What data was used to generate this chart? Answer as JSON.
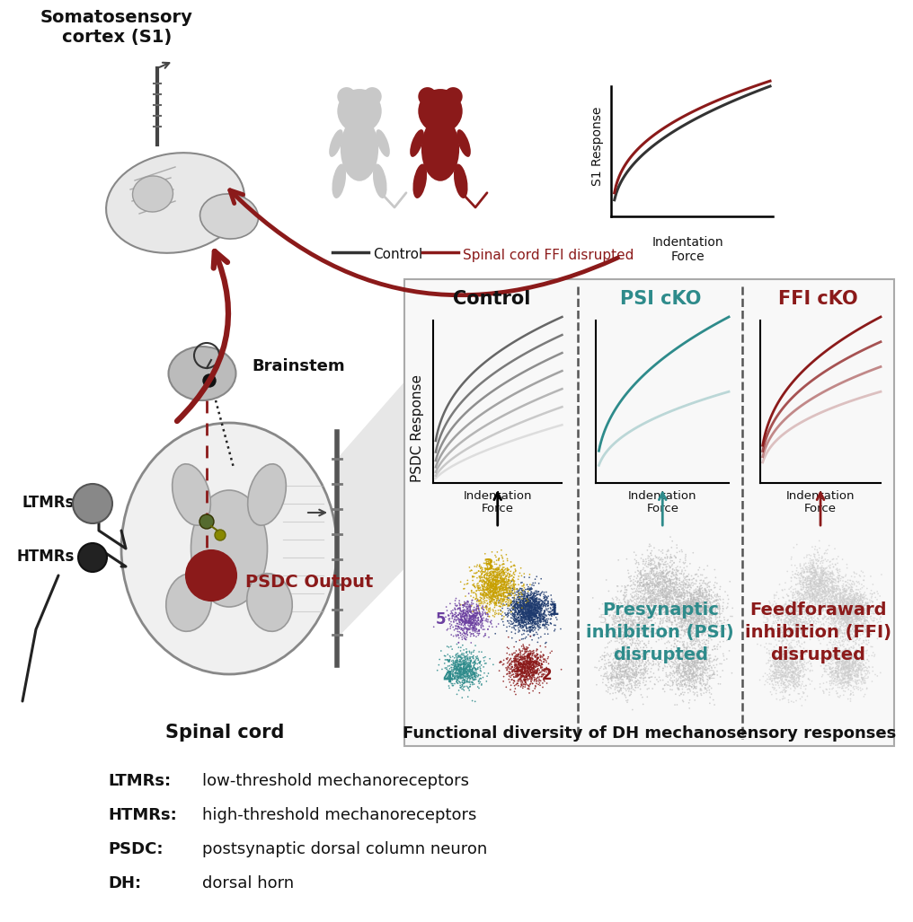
{
  "bg_color": "#ffffff",
  "dark_red": "#8B1A1A",
  "teal": "#2E8B8B",
  "cluster_colors": [
    "#1E3A6E",
    "#8B1A1A",
    "#C8A000",
    "#2E8B8B",
    "#6B3FA0"
  ],
  "cluster_labels": [
    "1",
    "2",
    "3",
    "4",
    "5"
  ],
  "legend_terms": [
    [
      "LTMRs:",
      "low-threshold mechanoreceptors"
    ],
    [
      "HTMRs:",
      "high-threshold mechanoreceptors"
    ],
    [
      "PSDC:",
      "postsynaptic dorsal column neuron"
    ],
    [
      "DH:",
      "dorsal horn"
    ]
  ],
  "panel_title_control": "Control",
  "panel_title_psi": "PSI cKO",
  "panel_title_ffi": "FFI cKO",
  "psi_label": "Presynaptic\ninhibition (PSI)\ndisrupted",
  "ffi_label": "Feedforaward\ninhibition (FFI)\ndisrupted",
  "x_axis_label": "Functional diversity of DH mechanosensory responses",
  "psdc_ylabel": "PSDC Response",
  "s1_ylabel": "S1 Response",
  "brainstem_label": "Brainstem",
  "spinal_cord_label": "Spinal cord",
  "ltmr_label": "LTMRs",
  "htmr_label": "HTMRs",
  "psdc_output_label": "PSDC Output",
  "s1_label": "Somatosensory\ncortex (S1)",
  "legend_control": "Control",
  "legend_ffi": "Spinal cord FFI disrupted"
}
